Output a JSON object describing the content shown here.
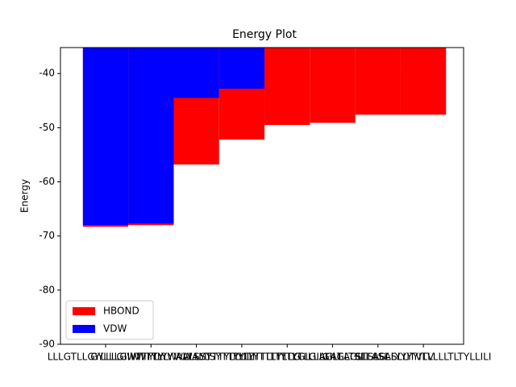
{
  "chart_data": {
    "type": "bar",
    "title": "Energy Plot",
    "y_label": "Energy",
    "categories": [
      "LLLGTLLGYLLLGIWTTYLY",
      "GYLLLGIWTTYLYWALLSYT",
      "WTTYLYWALLSYTTYLLYTT",
      "WALLSYTTYLLYTTLTYTLG",
      "TYLLYTTLTYTLGILLAGLT",
      "TLTYTLGILLAGLTSLLASL",
      "GILLAGLTSLLASLLYYITV",
      "SLLASLLYYITVLLLLLTLTYLLILI"
    ],
    "series": [
      {
        "name": "HBOND",
        "color": "#ff0000",
        "values": [
          -68.3,
          -68.0,
          -56.8,
          -52.2,
          -49.5,
          -49.1,
          -47.6,
          -47.6
        ]
      },
      {
        "name": "VDW",
        "color": "#0000ff",
        "values": [
          -68.0,
          -67.7,
          -44.5,
          -42.8,
          null,
          null,
          null,
          null
        ]
      }
    ],
    "ylim": [
      -90,
      -35.2
    ],
    "yticks": [
      -90,
      -80,
      -70,
      -60,
      -50,
      -40
    ],
    "legend": "lower left"
  }
}
